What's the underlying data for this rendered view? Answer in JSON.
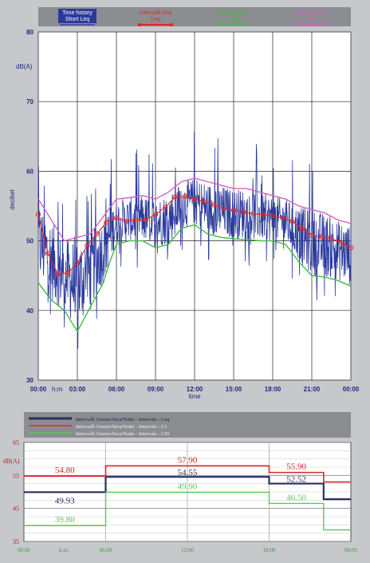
{
  "chart_data": [
    {
      "type": "line",
      "ylabel": "decibel",
      "unit_label": "dB(A)",
      "xlabel": "time",
      "x_unit_label": "h:m",
      "xlim": [
        "00:00",
        "24:00"
      ],
      "ylim": [
        30,
        80
      ],
      "y_ticks": [
        "30",
        "40",
        "50",
        "60",
        "70",
        "80"
      ],
      "x_ticks": [
        "00:00",
        "03:00",
        "06:00",
        "09:00",
        "12:00",
        "15:00",
        "18:00",
        "21:00",
        "00:00"
      ],
      "grid": true,
      "legend_position": "top",
      "legend": [
        {
          "label": "Time history Short Leq",
          "color": "#2a3a9c"
        },
        {
          "label": "Intervalli Ora Leq",
          "color": "#e0282c"
        },
        {
          "label": "Intervalli Ora L95",
          "color": "#3fbf3f"
        },
        {
          "label": "Intervalli Ora L5",
          "color": "#d85fc8"
        }
      ],
      "series": [
        {
          "name": "Intervalli Ora Leq",
          "color": "#e0282c",
          "x": [
            0,
            0.75,
            1.5,
            2.25,
            3,
            3.75,
            4.5,
            5.25,
            6,
            6.75,
            7.5,
            8.25,
            9,
            9.75,
            10.5,
            11.25,
            12,
            12.75,
            13.5,
            14.25,
            15,
            15.75,
            16.5,
            17.25,
            18,
            18.75,
            19.5,
            20.25,
            21,
            21.75,
            22.5,
            23.25,
            24
          ],
          "y": [
            53.8,
            48.2,
            45.2,
            45.4,
            46.8,
            49.3,
            51.0,
            52.7,
            53.3,
            52.8,
            53.0,
            53.0,
            53.8,
            54.8,
            56.3,
            56.4,
            56.0,
            55.6,
            55.2,
            54.6,
            54.4,
            54.1,
            53.9,
            53.8,
            53.6,
            53.3,
            52.8,
            51.8,
            50.8,
            50.6,
            50.3,
            49.8,
            49.0
          ]
        },
        {
          "name": "Intervalli Ora L95",
          "color": "#3fbf3f",
          "x": [
            0,
            1,
            2,
            3,
            4,
            5,
            5.5,
            6,
            7,
            8,
            9,
            10,
            11,
            12,
            13,
            14,
            15,
            16,
            17,
            18,
            19,
            20,
            21,
            22,
            23,
            24
          ],
          "y": [
            44.0,
            41.5,
            40.0,
            37.0,
            40.5,
            44.0,
            47.0,
            49.5,
            50.0,
            50.0,
            49.0,
            49.5,
            51.8,
            52.3,
            51.0,
            50.5,
            50.3,
            50.2,
            50.0,
            50.0,
            49.5,
            47.0,
            45.0,
            44.8,
            44.3,
            43.5
          ]
        },
        {
          "name": "Intervalli Ora L5",
          "color": "#d85fc8",
          "x": [
            0,
            1,
            2,
            3,
            4,
            5,
            6,
            7,
            8,
            9,
            10,
            11,
            12,
            13,
            14,
            15,
            16,
            17,
            18,
            19,
            20,
            21,
            22,
            23,
            24
          ],
          "y": [
            56.0,
            53.0,
            50.0,
            50.5,
            51.0,
            53.5,
            56.0,
            56.2,
            56.5,
            56.0,
            57.0,
            58.5,
            59.0,
            58.5,
            58.0,
            57.5,
            57.5,
            57.0,
            56.5,
            56.0,
            55.0,
            54.5,
            54.0,
            53.0,
            52.5
          ]
        }
      ]
    },
    {
      "type": "line",
      "unit_label": "dB(A)",
      "x_unit_label": "h.m.",
      "xlim": [
        "00:00",
        "24:00"
      ],
      "ylim": [
        35,
        65
      ],
      "y_ticks": [
        "35",
        "45",
        "55",
        "65"
      ],
      "x_ticks": [
        "00:00",
        "06:00",
        "12:00",
        "18:00",
        "00:00"
      ],
      "grid": true,
      "legend_position": "top",
      "legend": [
        {
          "label": "Intervalli Giorno/Sera/Notte - Intervals - Leq",
          "color": "#2a2f62"
        },
        {
          "label": "Intervalli Giorno/Sera/Notte - Intervals - L5",
          "color": "#e0282c"
        },
        {
          "label": "Intervalli Giorno/Sera/Notte - Intervals - L95",
          "color": "#5ac85a"
        }
      ],
      "series": [
        {
          "name": "Intervalli Giorno/Sera/Notte - Intervals - Leq",
          "color": "#2a2f62",
          "x": [
            0,
            6,
            18,
            22,
            24
          ],
          "y": [
            49.93,
            54.55,
            52.52,
            47.8,
            47.8
          ],
          "labels": [
            {
              "x": 3,
              "text": "49.93"
            },
            {
              "x": 12,
              "text": "54.55"
            },
            {
              "x": 20,
              "text": "52.52"
            }
          ]
        },
        {
          "name": "Intervalli Giorno/Sera/Notte - Intervals - L5",
          "color": "#e0282c",
          "x": [
            0,
            6,
            18,
            22,
            24
          ],
          "y": [
            54.8,
            57.9,
            55.9,
            53.0,
            53.0
          ],
          "labels": [
            {
              "x": 3,
              "text": "54.80"
            },
            {
              "x": 12,
              "text": "57.90"
            },
            {
              "x": 20,
              "text": "55.90"
            }
          ]
        },
        {
          "name": "Intervalli Giorno/Sera/Notte - Intervals - L95",
          "color": "#5ac85a",
          "x": [
            0,
            6,
            18,
            22,
            24
          ],
          "y": [
            39.8,
            49.9,
            46.5,
            38.5,
            38.5
          ],
          "labels": [
            {
              "x": 3,
              "text": "39.80"
            },
            {
              "x": 12,
              "text": "49.90"
            },
            {
              "x": 20,
              "text": "46.50"
            }
          ]
        }
      ]
    }
  ]
}
